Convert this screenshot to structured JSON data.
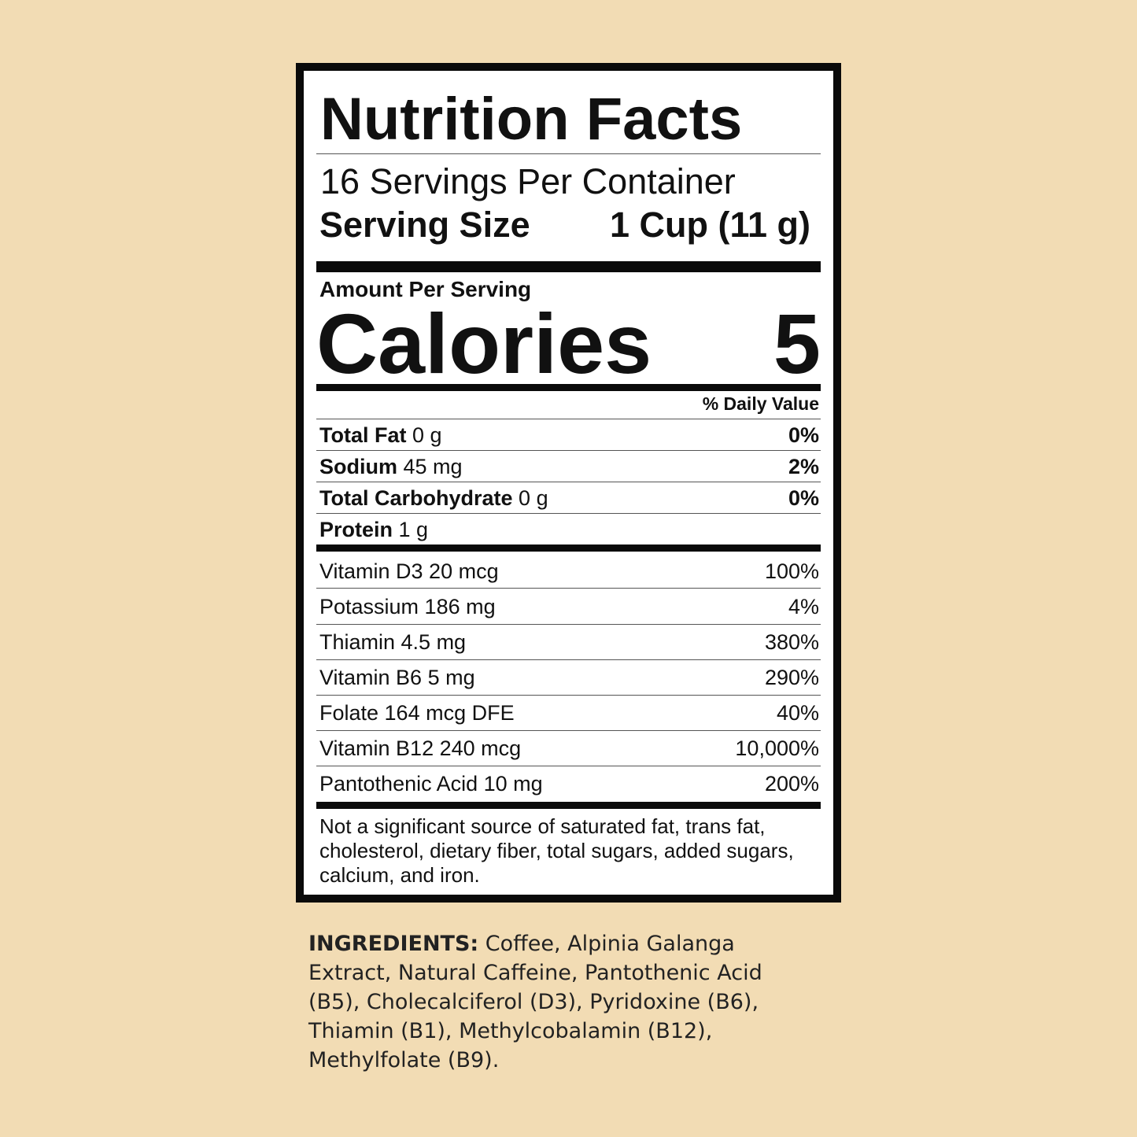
{
  "label": {
    "title": "Nutrition Facts",
    "servings_per_container": "16 Servings Per Container",
    "serving_size_label": "Serving Size",
    "serving_size_value": "1 Cup (11 g)",
    "amount_per_serving": "Amount Per Serving",
    "calories_label": "Calories",
    "calories_value": "5",
    "daily_value_header": "% Daily Value",
    "nutrients": [
      {
        "name": "Total Fat",
        "amount": "0 g",
        "dv": "0%"
      },
      {
        "name": "Sodium",
        "amount": "45 mg",
        "dv": "2%"
      },
      {
        "name": "Total Carbohydrate",
        "amount": "0 g",
        "dv": "0%"
      },
      {
        "name": "Protein",
        "amount": "1 g",
        "dv": ""
      }
    ],
    "vitamins": [
      {
        "text": "Vitamin D3 20 mcg",
        "dv": "100%"
      },
      {
        "text": "Potassium 186 mg",
        "dv": "4%"
      },
      {
        "text": "Thiamin 4.5 mg",
        "dv": "380%"
      },
      {
        "text": "Vitamin B6 5 mg",
        "dv": "290%"
      },
      {
        "text": "Folate 164 mcg DFE",
        "dv": "40%"
      },
      {
        "text": "Vitamin B12 240 mcg",
        "dv": "10,000%"
      },
      {
        "text": "Pantothenic Acid 10 mg",
        "dv": "200%"
      }
    ],
    "footnote": "Not a significant source of saturated fat, trans fat, cholesterol, dietary fiber, total sugars, added sugars, calcium, and iron."
  },
  "ingredients": {
    "label": "INGREDIENTS:",
    "text": " Coffee, Alpinia Galanga Extract, Natural Caffeine, Pantothenic Acid (B5), Cholecalciferol (D3), Pyridoxine (B6), Thiamin (B1), Methylcobalamin (B12), Methylfolate (B9)."
  },
  "colors": {
    "background": "#F2DCB4",
    "panel": "#FFFFFF",
    "ink": "#0A0A0A"
  }
}
